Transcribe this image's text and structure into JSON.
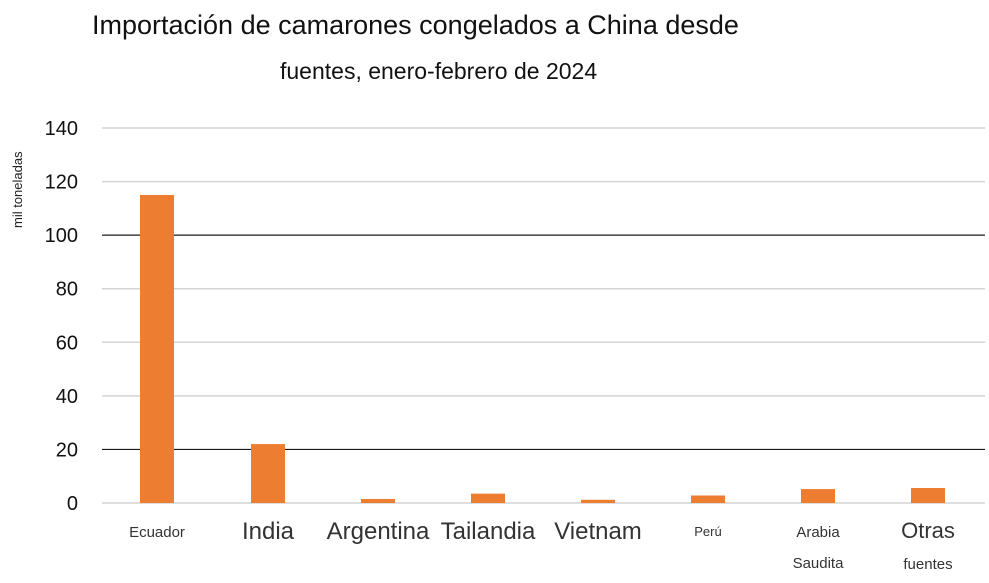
{
  "chart_data": {
    "type": "bar",
    "title": "Importación de camarones congelados a China desde fuentes, enero-febrero de 2024",
    "title_lines": [
      "Importación de camarones congelados a China desde",
      "fuentes, enero-febrero de 2024"
    ],
    "ylabel": "mil toneladas",
    "xlabel": "",
    "ylim": [
      0,
      140
    ],
    "yticks": [
      0,
      20,
      40,
      60,
      80,
      100,
      120,
      140
    ],
    "categories": [
      "Ecuador",
      "India",
      "Argentina",
      "Tailandia",
      "Vietnam",
      "Perú",
      "Arabia Saudita",
      "Otras fuentes"
    ],
    "category_lines": [
      [
        "Ecuador"
      ],
      [
        "India"
      ],
      [
        "Argentina"
      ],
      [
        "Tailandia"
      ],
      [
        "Vietnam"
      ],
      [
        "Perú"
      ],
      [
        "Arabia",
        "Saudita"
      ],
      [
        "Otras",
        "fuentes"
      ]
    ],
    "values": [
      115,
      22,
      1.5,
      3.5,
      1.2,
      2.8,
      5.2,
      5.6
    ],
    "bar_color": "#ed7d31",
    "grid": true
  }
}
